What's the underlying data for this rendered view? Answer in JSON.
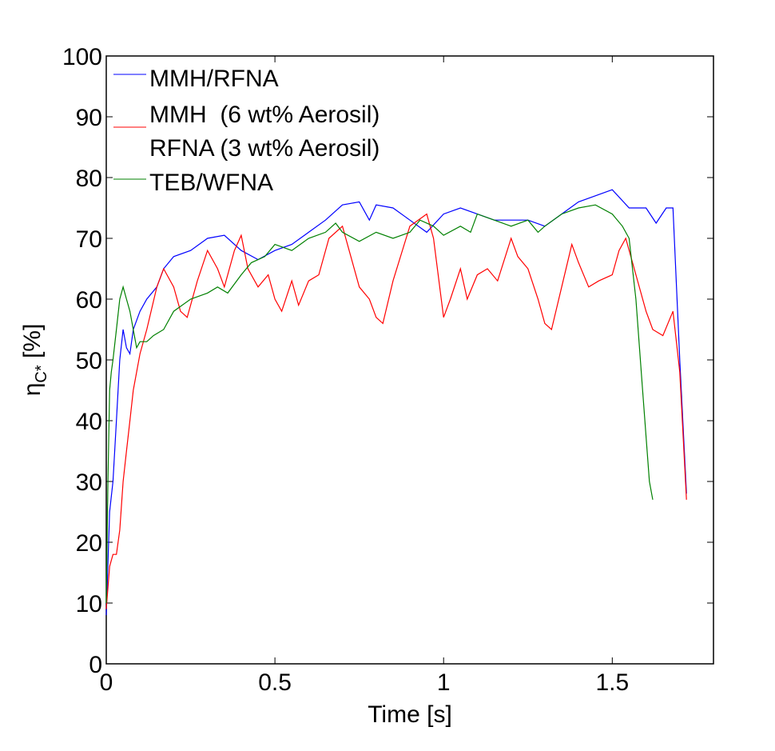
{
  "chart_data": {
    "type": "line",
    "title": "",
    "xlabel": "Time [s]",
    "ylabel": "η",
    "ylabel_sub": "C*",
    "ylabel_unit": " [%]",
    "xlim": [
      0,
      1.8
    ],
    "ylim": [
      0,
      100
    ],
    "xticks": [
      0,
      0.5,
      1,
      1.5
    ],
    "xtick_labels": [
      "0",
      "0.5",
      "1",
      "1.5"
    ],
    "yticks": [
      0,
      10,
      20,
      30,
      40,
      50,
      60,
      70,
      80,
      90,
      100
    ],
    "ytick_labels": [
      "0",
      "10",
      "20",
      "30",
      "40",
      "50",
      "60",
      "70",
      "80",
      "90",
      "100"
    ],
    "grid": false,
    "legend_placement": "top-left",
    "series": [
      {
        "name": "MMH/RFNA",
        "color": "#0000ff",
        "x": [
          0,
          0.01,
          0.02,
          0.03,
          0.04,
          0.05,
          0.06,
          0.07,
          0.08,
          0.1,
          0.12,
          0.15,
          0.17,
          0.2,
          0.25,
          0.3,
          0.35,
          0.4,
          0.45,
          0.5,
          0.55,
          0.6,
          0.65,
          0.7,
          0.75,
          0.78,
          0.8,
          0.85,
          0.9,
          0.95,
          1.0,
          1.05,
          1.1,
          1.15,
          1.2,
          1.25,
          1.3,
          1.35,
          1.4,
          1.45,
          1.5,
          1.55,
          1.6,
          1.63,
          1.66,
          1.68,
          1.7,
          1.72
        ],
        "y": [
          8,
          25,
          30,
          40,
          50,
          55,
          52,
          51,
          55,
          58,
          60,
          62,
          65,
          67,
          68,
          70,
          70.5,
          68,
          66.5,
          68,
          69,
          71,
          73,
          75.5,
          76,
          73,
          75.5,
          75,
          73,
          71,
          74,
          75,
          74,
          73,
          73,
          73,
          72,
          74,
          76,
          77,
          78,
          75,
          75,
          72.5,
          75,
          75,
          50,
          28
        ]
      },
      {
        "name": "MMH  (6 wt% Aerosil)",
        "name2": "RFNA (3 wt% Aerosil)",
        "color": "#ff0000",
        "x": [
          0,
          0.01,
          0.02,
          0.03,
          0.04,
          0.05,
          0.06,
          0.07,
          0.08,
          0.1,
          0.12,
          0.15,
          0.17,
          0.2,
          0.22,
          0.24,
          0.27,
          0.3,
          0.33,
          0.35,
          0.38,
          0.4,
          0.42,
          0.45,
          0.48,
          0.5,
          0.52,
          0.55,
          0.57,
          0.6,
          0.63,
          0.66,
          0.7,
          0.72,
          0.75,
          0.78,
          0.8,
          0.82,
          0.85,
          0.9,
          0.95,
          0.97,
          1.0,
          1.02,
          1.05,
          1.07,
          1.1,
          1.13,
          1.16,
          1.2,
          1.22,
          1.25,
          1.28,
          1.3,
          1.32,
          1.35,
          1.38,
          1.4,
          1.43,
          1.46,
          1.5,
          1.52,
          1.54,
          1.56,
          1.6,
          1.62,
          1.65,
          1.68,
          1.7,
          1.72
        ],
        "y": [
          9,
          16,
          18,
          18,
          22,
          30,
          35,
          40,
          45,
          51,
          55,
          62,
          65,
          62,
          58,
          57,
          63,
          68,
          65,
          62,
          68,
          70.5,
          65,
          62,
          64,
          60,
          58,
          63,
          59,
          63,
          64,
          70,
          72,
          68,
          62,
          60,
          57,
          56,
          63,
          72,
          74,
          70,
          57,
          60,
          65,
          60,
          64,
          65,
          63,
          70,
          67,
          65,
          60,
          56,
          55,
          62,
          69,
          66,
          62,
          63,
          64,
          68,
          70,
          66,
          58,
          55,
          54,
          58,
          48,
          27
        ]
      },
      {
        "name": "TEB/WFNA",
        "color": "#008000",
        "x": [
          0,
          0.005,
          0.01,
          0.015,
          0.02,
          0.03,
          0.04,
          0.05,
          0.06,
          0.07,
          0.08,
          0.09,
          0.1,
          0.12,
          0.14,
          0.17,
          0.2,
          0.25,
          0.3,
          0.33,
          0.36,
          0.4,
          0.43,
          0.47,
          0.5,
          0.55,
          0.6,
          0.65,
          0.68,
          0.7,
          0.75,
          0.8,
          0.85,
          0.9,
          0.93,
          0.97,
          1.0,
          1.05,
          1.08,
          1.1,
          1.15,
          1.2,
          1.25,
          1.28,
          1.3,
          1.35,
          1.4,
          1.45,
          1.5,
          1.53,
          1.55,
          1.57,
          1.59,
          1.61,
          1.62
        ],
        "y": [
          10,
          30,
          45,
          48,
          50,
          55,
          60,
          62,
          60,
          58,
          55,
          52,
          53,
          53,
          54,
          55,
          58,
          60,
          61,
          62,
          61,
          64,
          66,
          67,
          69,
          68,
          70,
          71,
          72.5,
          71,
          69.5,
          71,
          70,
          71,
          73,
          72,
          70.5,
          72,
          71,
          74,
          73,
          72,
          73,
          71,
          72,
          74,
          75,
          75.5,
          74,
          72,
          70,
          60,
          45,
          30,
          27
        ]
      }
    ]
  }
}
